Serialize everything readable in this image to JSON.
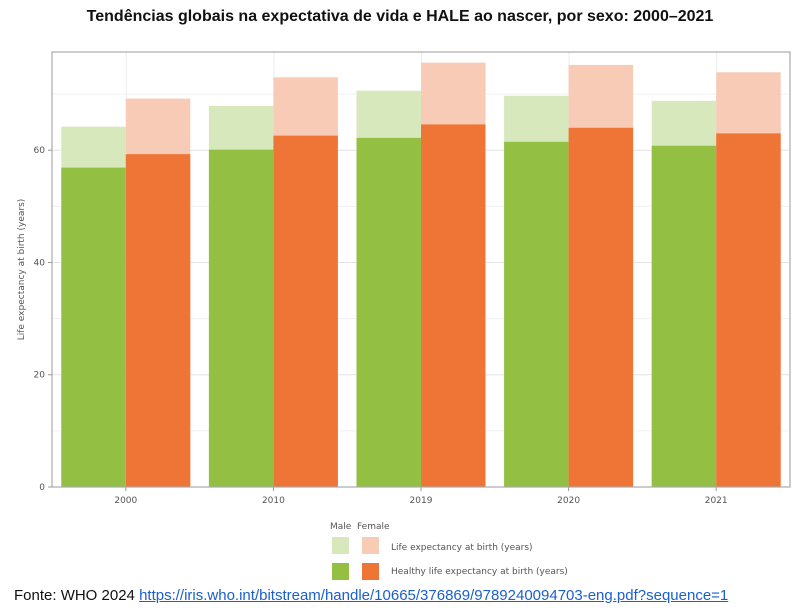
{
  "chart_data": {
    "type": "bar",
    "title": "Tendências globais na expectativa de vida e HALE ao nascer, por sexo: 2000–2021",
    "xlabel": "",
    "ylabel": "Life expectancy at birth (years)",
    "ylim": [
      0,
      77.5
    ],
    "yticks": [
      0,
      20,
      40,
      60
    ],
    "grid": true,
    "categories": [
      "2000",
      "2010",
      "2019",
      "2020",
      "2021"
    ],
    "series": [
      {
        "name": "Male - Life expectancy at birth (years)",
        "sex": "Male",
        "measure": "Life expectancy at birth (years)",
        "values": [
          64.2,
          67.9,
          70.6,
          69.7,
          68.8
        ],
        "color": "#d8e8bd"
      },
      {
        "name": "Male - Healthy life expectancy at birth (years)",
        "sex": "Male",
        "measure": "Healthy life expectancy at birth (years)",
        "values": [
          56.9,
          60.1,
          62.2,
          61.5,
          60.8
        ],
        "color": "#93c043"
      },
      {
        "name": "Female - Life expectancy at birth (years)",
        "sex": "Female",
        "measure": "Life expectancy at birth (years)",
        "values": [
          69.2,
          73.0,
          75.6,
          75.2,
          73.9
        ],
        "color": "#f8cbb7"
      },
      {
        "name": "Female - Healthy life expectancy at birth (years)",
        "sex": "Female",
        "measure": "Healthy life expectancy at birth (years)",
        "values": [
          59.3,
          62.6,
          64.6,
          64.0,
          63.0
        ],
        "color": "#ef7537"
      }
    ],
    "legend": {
      "placement": "bottom",
      "col_headers": [
        "Male",
        "Female"
      ],
      "rows": [
        "Life expectancy at birth (years)",
        "Healthy life expectancy at birth (years)"
      ]
    }
  },
  "source": {
    "prefix": "Fonte: WHO 2024",
    "link": "https://iris.who.int/bitstream/handle/10665/376869/9789240094703-eng.pdf?sequence=1"
  }
}
